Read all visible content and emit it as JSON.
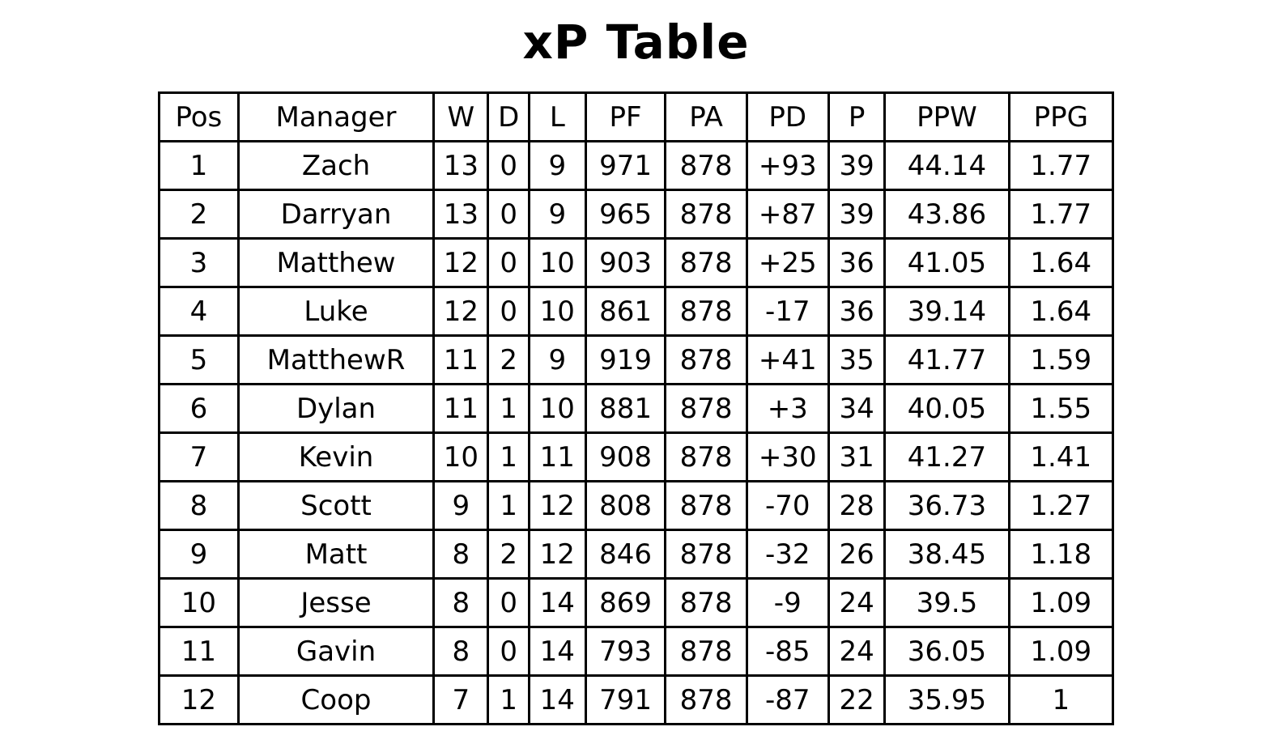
{
  "title": "xP Table",
  "chart_data": {
    "type": "table",
    "title": "xP Table",
    "columns": [
      "Pos",
      "Manager",
      "W",
      "D",
      "L",
      "PF",
      "PA",
      "PD",
      "P",
      "PPW",
      "PPG"
    ],
    "rows": [
      [
        "1",
        "Zach",
        "13",
        "0",
        "9",
        "971",
        "878",
        "+93",
        "39",
        "44.14",
        "1.77"
      ],
      [
        "2",
        "Darryan",
        "13",
        "0",
        "9",
        "965",
        "878",
        "+87",
        "39",
        "43.86",
        "1.77"
      ],
      [
        "3",
        "Matthew",
        "12",
        "0",
        "10",
        "903",
        "878",
        "+25",
        "36",
        "41.05",
        "1.64"
      ],
      [
        "4",
        "Luke",
        "12",
        "0",
        "10",
        "861",
        "878",
        "-17",
        "36",
        "39.14",
        "1.64"
      ],
      [
        "5",
        "MatthewR",
        "11",
        "2",
        "9",
        "919",
        "878",
        "+41",
        "35",
        "41.77",
        "1.59"
      ],
      [
        "6",
        "Dylan",
        "11",
        "1",
        "10",
        "881",
        "878",
        "+3",
        "34",
        "40.05",
        "1.55"
      ],
      [
        "7",
        "Kevin",
        "10",
        "1",
        "11",
        "908",
        "878",
        "+30",
        "31",
        "41.27",
        "1.41"
      ],
      [
        "8",
        "Scott",
        "9",
        "1",
        "12",
        "808",
        "878",
        "-70",
        "28",
        "36.73",
        "1.27"
      ],
      [
        "9",
        "Matt",
        "8",
        "2",
        "12",
        "846",
        "878",
        "-32",
        "26",
        "38.45",
        "1.18"
      ],
      [
        "10",
        "Jesse",
        "8",
        "0",
        "14",
        "869",
        "878",
        "-9",
        "24",
        "39.5",
        "1.09"
      ],
      [
        "11",
        "Gavin",
        "8",
        "0",
        "14",
        "793",
        "878",
        "-85",
        "24",
        "36.05",
        "1.09"
      ],
      [
        "12",
        "Coop",
        "7",
        "1",
        "14",
        "791",
        "878",
        "-87",
        "22",
        "35.95",
        "1"
      ]
    ],
    "layout_hints": {
      "grid": true,
      "border_color": "#000000",
      "background": "#ffffff",
      "text_color": "#000000"
    }
  }
}
